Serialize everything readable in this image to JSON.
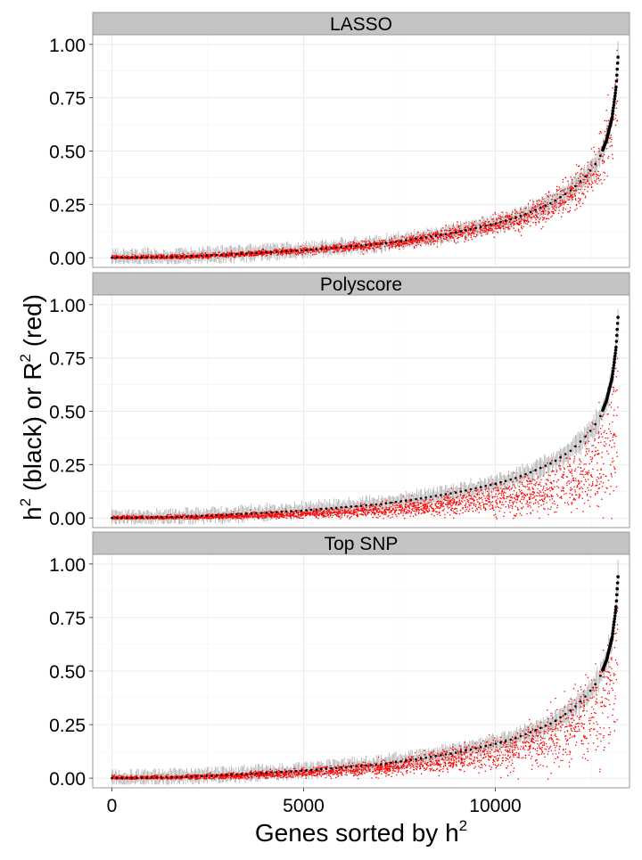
{
  "chart_data": {
    "type": "scatter",
    "layout": "faceted",
    "xlabel": "Genes sorted by h",
    "xlabel_sup": "2",
    "ylabel": {
      "part1": "h",
      "part1_sup": "2",
      "part2": " (black) or  R",
      "part2_sup": "2",
      "part3": " (red)"
    },
    "xlim": [
      -500,
      13500
    ],
    "ylim": [
      -0.045,
      1.045
    ],
    "x_ticks": [
      0,
      5000,
      10000
    ],
    "x_tick_labels": [
      "0",
      "5000",
      "10000"
    ],
    "y_ticks": [
      0,
      0.25,
      0.5,
      0.75,
      1.0
    ],
    "y_tick_labels": [
      "0.00",
      "0.25",
      "0.50",
      "0.75",
      "1.00"
    ],
    "grid": true,
    "colors": {
      "h2_points": "#000000",
      "r2_points": "#ff0000",
      "error_bars": "#a6a6a6",
      "strip_fill": "#c3c3c3",
      "panel_border": "#999999",
      "grid": "#ebebeb"
    },
    "h2_curve": {
      "n_genes": 13200,
      "x": [
        0,
        1800,
        3000,
        4000,
        5000,
        6000,
        7000,
        8000,
        9000,
        10000,
        10500,
        11000,
        11500,
        12000,
        12400,
        12700,
        12900,
        13050,
        13150,
        13200
      ],
      "y": [
        0.0,
        0.005,
        0.015,
        0.025,
        0.035,
        0.05,
        0.065,
        0.09,
        0.12,
        0.16,
        0.185,
        0.22,
        0.26,
        0.32,
        0.39,
        0.46,
        0.55,
        0.66,
        0.8,
        0.94
      ],
      "error_bar_halfwidth": 0.035
    },
    "facets": [
      {
        "strip": "LASSO",
        "r2_relative_mean": 0.95,
        "r2_relative_spread": 0.28
      },
      {
        "strip": "Polyscore",
        "r2_relative_mean": 0.55,
        "r2_relative_spread": 0.45
      },
      {
        "strip": "Top SNP",
        "r2_relative_mean": 0.72,
        "r2_relative_spread": 0.5
      }
    ]
  }
}
